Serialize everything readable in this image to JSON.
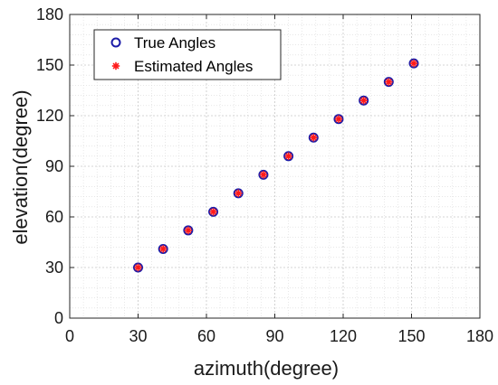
{
  "chart_data": {
    "type": "scatter",
    "xlabel": "azimuth(degree)",
    "ylabel": "elevation(degree)",
    "xlim": [
      0,
      180
    ],
    "ylim": [
      0,
      180
    ],
    "xticks": [
      0,
      30,
      60,
      90,
      120,
      150,
      180
    ],
    "yticks": [
      0,
      30,
      60,
      90,
      120,
      150,
      180
    ],
    "xtick_labels": [
      "0",
      "30",
      "60",
      "90",
      "120",
      "150",
      "180"
    ],
    "ytick_labels": [
      "0",
      "30",
      "60",
      "90",
      "120",
      "150",
      "180"
    ],
    "grid": true,
    "minor_grid": true,
    "legend_position": "top-left",
    "series": [
      {
        "name": "True Angles",
        "marker": "circle-open",
        "color": "#1c1ca8",
        "x": [
          30,
          41,
          52,
          63,
          74,
          85,
          96,
          107,
          118,
          129,
          140,
          151
        ],
        "y": [
          30,
          41,
          52,
          63,
          74,
          85,
          96,
          107,
          118,
          129,
          140,
          151
        ]
      },
      {
        "name": "Estimated Angles",
        "marker": "asterisk",
        "color": "#ff1a1a",
        "x": [
          30,
          41,
          52,
          63,
          74,
          85,
          96,
          107,
          118,
          129,
          140,
          151
        ],
        "y": [
          30,
          41,
          52,
          63,
          74,
          85,
          96,
          107,
          118,
          129,
          140,
          151
        ]
      }
    ]
  }
}
